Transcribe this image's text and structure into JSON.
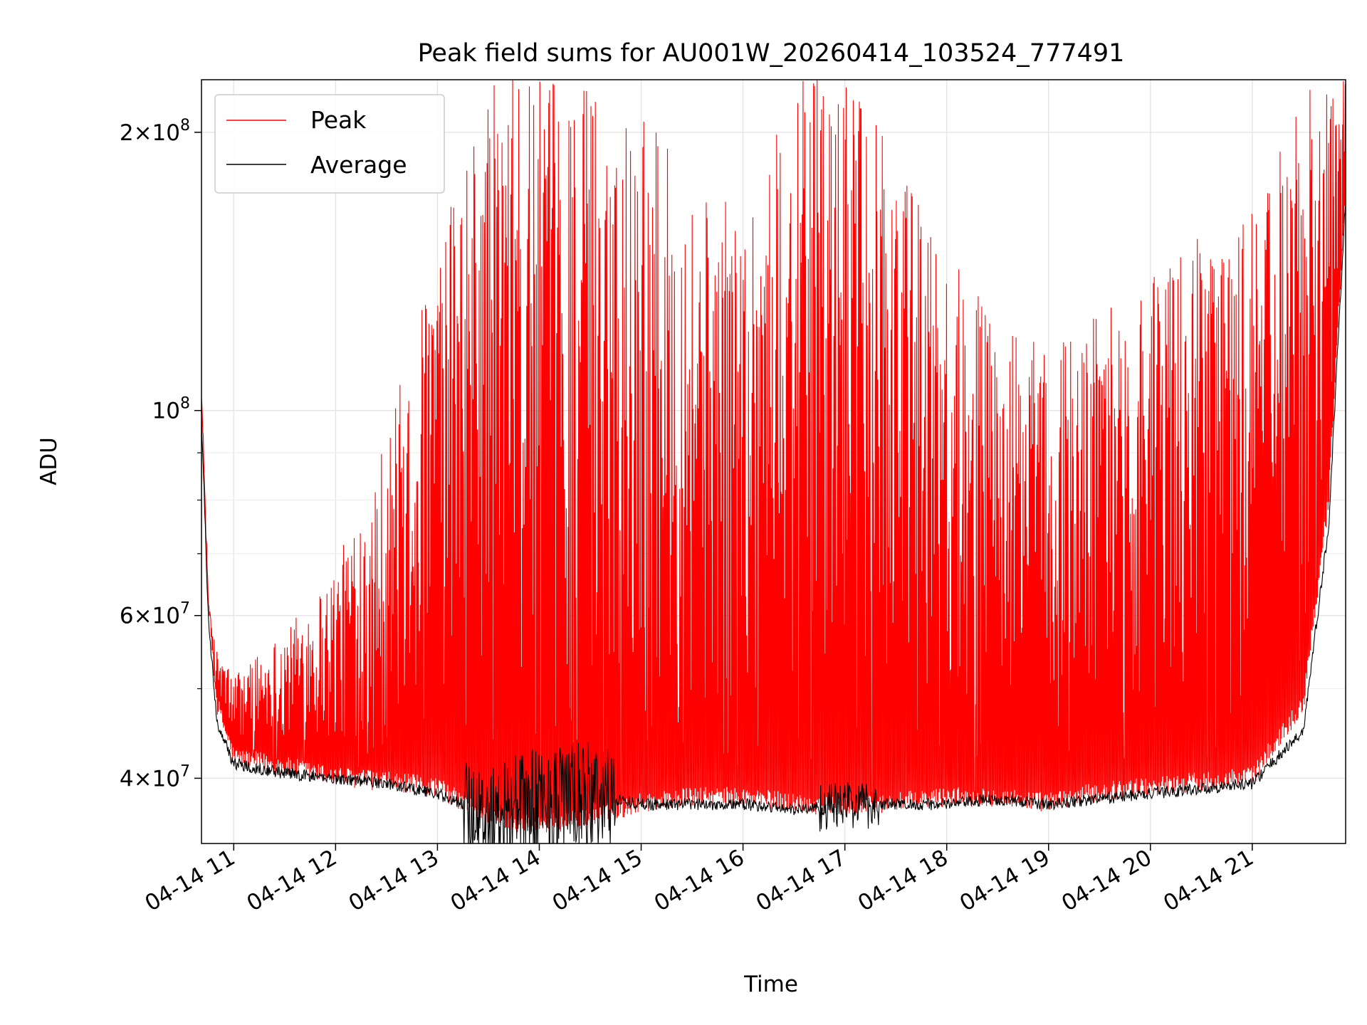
{
  "chart_data": {
    "type": "line",
    "title": "Peak field sums for AU001W_20260414_103524_777491",
    "xlabel": "Time",
    "ylabel": "ADU",
    "x_range": [
      "2026-04-14 10:41",
      "2026-04-14 21:55"
    ],
    "ylim": [
      34000000,
      228000000
    ],
    "y_scale": "log",
    "grid": true,
    "legend_position": "upper-left",
    "x_ticks": [
      {
        "value": "2026-04-14 11:00",
        "label": "04-14 11"
      },
      {
        "value": "2026-04-14 12:00",
        "label": "04-14 12"
      },
      {
        "value": "2026-04-14 13:00",
        "label": "04-14 13"
      },
      {
        "value": "2026-04-14 14:00",
        "label": "04-14 14"
      },
      {
        "value": "2026-04-14 15:00",
        "label": "04-14 15"
      },
      {
        "value": "2026-04-14 16:00",
        "label": "04-14 16"
      },
      {
        "value": "2026-04-14 17:00",
        "label": "04-14 17"
      },
      {
        "value": "2026-04-14 18:00",
        "label": "04-14 18"
      },
      {
        "value": "2026-04-14 19:00",
        "label": "04-14 19"
      },
      {
        "value": "2026-04-14 20:00",
        "label": "04-14 20"
      },
      {
        "value": "2026-04-14 21:00",
        "label": "04-14 21"
      }
    ],
    "y_ticks": [
      {
        "value": 40000000,
        "base": "4",
        "exponent": "7"
      },
      {
        "value": 60000000,
        "base": "6",
        "exponent": "7"
      },
      {
        "value": 100000000,
        "base": "",
        "exponent": "8"
      },
      {
        "value": 200000000,
        "base": "2",
        "exponent": "8"
      }
    ],
    "y_minor_ticks": [
      50000000,
      70000000,
      80000000,
      90000000
    ],
    "series": [
      {
        "name": "Peak",
        "color": "#ff0000",
        "x": [
          "2026-04-14 10:41",
          "2026-04-14 10:45",
          "2026-04-14 10:50",
          "2026-04-14 11:00",
          "2026-04-14 11:30",
          "2026-04-14 12:00",
          "2026-04-14 12:30",
          "2026-04-14 13:00",
          "2026-04-14 13:30",
          "2026-04-14 14:00",
          "2026-04-14 14:30",
          "2026-04-14 15:00",
          "2026-04-14 15:30",
          "2026-04-14 16:00",
          "2026-04-14 16:30",
          "2026-04-14 17:00",
          "2026-04-14 17:30",
          "2026-04-14 18:00",
          "2026-04-14 18:30",
          "2026-04-14 19:00",
          "2026-04-14 19:30",
          "2026-04-14 20:00",
          "2026-04-14 20:30",
          "2026-04-14 21:00",
          "2026-04-14 21:30",
          "2026-04-14 21:45",
          "2026-04-14 21:55"
        ],
        "envelope_low": [
          105000000,
          62000000,
          48000000,
          42000000,
          41000000,
          40000000,
          39500000,
          39000000,
          36000000,
          35500000,
          36000000,
          37500000,
          38000000,
          38000000,
          37500000,
          37000000,
          37500000,
          38000000,
          38000000,
          37500000,
          38500000,
          39000000,
          39500000,
          40000000,
          48000000,
          80000000,
          175000000
        ],
        "envelope_high": [
          105000000,
          62000000,
          55000000,
          52000000,
          58000000,
          68000000,
          95000000,
          150000000,
          228000000,
          228000000,
          228000000,
          215000000,
          175000000,
          165000000,
          228000000,
          228000000,
          190000000,
          150000000,
          125000000,
          118000000,
          130000000,
          140000000,
          155000000,
          165000000,
          228000000,
          228000000,
          228000000
        ]
      },
      {
        "name": "Average",
        "color": "#000000",
        "x": [
          "2026-04-14 10:41",
          "2026-04-14 10:45",
          "2026-04-14 10:50",
          "2026-04-14 11:00",
          "2026-04-14 11:30",
          "2026-04-14 12:00",
          "2026-04-14 12:30",
          "2026-04-14 13:00",
          "2026-04-14 13:30",
          "2026-04-14 14:00",
          "2026-04-14 14:30",
          "2026-04-14 15:00",
          "2026-04-14 15:30",
          "2026-04-14 16:00",
          "2026-04-14 16:30",
          "2026-04-14 17:00",
          "2026-04-14 17:30",
          "2026-04-14 18:00",
          "2026-04-14 18:30",
          "2026-04-14 19:00",
          "2026-04-14 19:30",
          "2026-04-14 20:00",
          "2026-04-14 20:30",
          "2026-04-14 21:00",
          "2026-04-14 21:30",
          "2026-04-14 21:45",
          "2026-04-14 21:55"
        ],
        "values": [
          98000000,
          60000000,
          46000000,
          41500000,
          40500000,
          40000000,
          39500000,
          38500000,
          36500000,
          38000000,
          38500000,
          37500000,
          37500000,
          37500000,
          37000000,
          37500000,
          37500000,
          37500000,
          38000000,
          37500000,
          38000000,
          38500000,
          39000000,
          39500000,
          45000000,
          75000000,
          170000000
        ]
      }
    ]
  }
}
